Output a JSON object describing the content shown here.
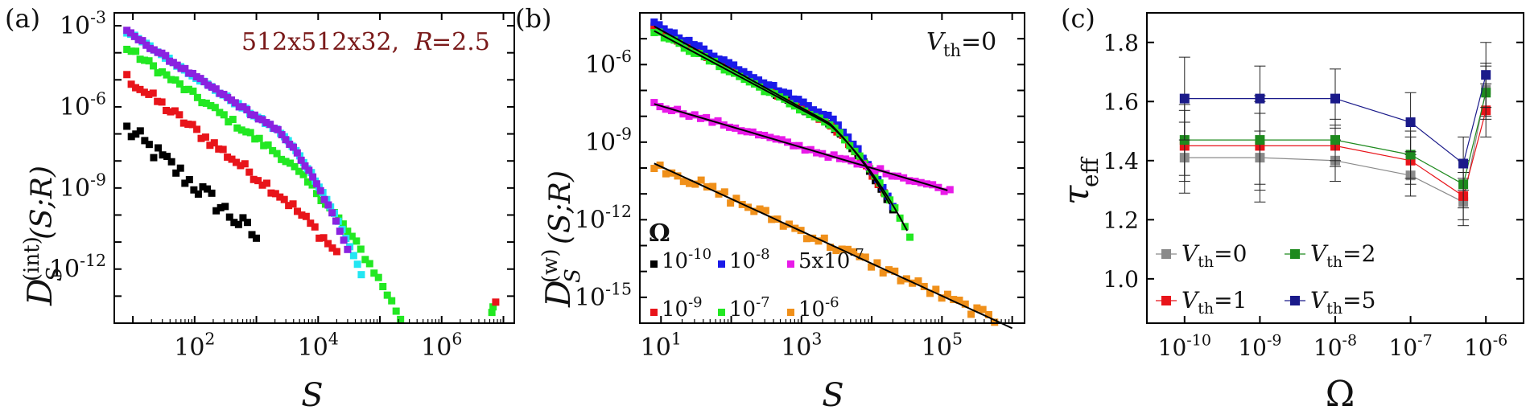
{
  "panels": {
    "a": {
      "letter": "(a)",
      "annotation": {
        "text": "512x512x32,",
        "param_name": "R",
        "param_value": "=2.5",
        "color": "#7a1a1a"
      },
      "xlabel": "S",
      "ylabel": {
        "main": "D",
        "sup": "(int)",
        "sub": "S",
        "args": "(S;R)"
      }
    },
    "b": {
      "letter": "(b)",
      "annotation": {
        "text": "V",
        "sub": "th",
        "value": "=0"
      },
      "legend_title": "Ω",
      "xlabel": "S",
      "ylabel": {
        "main": "D",
        "sup": "(w)",
        "sub": "S",
        "args": "(S;R)"
      }
    },
    "c": {
      "letter": "(c)",
      "xlabel": "Ω",
      "ylabel": {
        "main": "τ",
        "sub": "eff"
      }
    }
  },
  "chart_data": [
    {
      "panel": "a",
      "type": "scatter",
      "xscale": "log",
      "yscale": "log",
      "xlim": [
        5,
        15000000
      ],
      "ylim": [
        1e-14,
        0.003
      ],
      "xticks": [
        {
          "v": 100,
          "base": "10",
          "exp": "2"
        },
        {
          "v": 10000,
          "base": "10",
          "exp": "4"
        },
        {
          "v": 1000000,
          "base": "10",
          "exp": "6"
        }
      ],
      "yticks": [
        {
          "v": 0.001,
          "base": "10",
          "exp": "-3"
        },
        {
          "v": 1e-06,
          "base": "10",
          "exp": "-6"
        },
        {
          "v": 1e-09,
          "base": "10",
          "exp": "-9"
        },
        {
          "v": 1e-12,
          "base": "10",
          "exp": "-12"
        }
      ],
      "series": [
        {
          "color": "#000000",
          "from": 8,
          "to": 1000,
          "y_start": 1.5e-07,
          "slope": -1.9,
          "curv": 0.0,
          "noise": 0.35,
          "ppd": 14
        },
        {
          "color": "#e8141a",
          "from": 8,
          "to": 20000,
          "y_start": 1.2e-05,
          "slope": -1.75,
          "curv": 0.15,
          "noise": 0.18,
          "ppd": 14
        },
        {
          "color": "#22e822",
          "from": 8,
          "to": 300000,
          "y_start": 0.00015,
          "slope": -1.6,
          "curv": 0.22,
          "noise": 0.12,
          "ppd": 14
        },
        {
          "color": "#22e6f2",
          "from": 8,
          "to": 50000,
          "y_start": 0.0006,
          "slope": -1.5,
          "curv": 0.5,
          "noise": 0.06,
          "ppd": 16
        },
        {
          "color": "#8a22e0",
          "from": 8,
          "to": 30000,
          "y_start": 0.0006,
          "slope": -1.5,
          "curv": 0.55,
          "noise": 0.06,
          "ppd": 16
        }
      ],
      "outliers": [
        {
          "color": "#22e822",
          "x": 6500000,
          "y": 2.5e-14
        },
        {
          "color": "#22e822",
          "x": 6800000,
          "y": 4e-14
        },
        {
          "color": "#e8141a",
          "x": 7500000,
          "y": 6e-14
        }
      ]
    },
    {
      "panel": "b",
      "type": "scatter",
      "xscale": "log",
      "yscale": "log",
      "xlim": [
        5,
        1500000
      ],
      "ylim": [
        1e-16,
        0.0001
      ],
      "xticks": [
        {
          "v": 10,
          "base": "10",
          "exp": "1"
        },
        {
          "v": 1000,
          "base": "10",
          "exp": "3"
        },
        {
          "v": 100000,
          "base": "10",
          "exp": "5"
        }
      ],
      "yticks": [
        {
          "v": 1e-06,
          "base": "10",
          "exp": "-6"
        },
        {
          "v": 1e-09,
          "base": "10",
          "exp": "-9"
        },
        {
          "v": 1e-12,
          "base": "10",
          "exp": "-12"
        },
        {
          "v": 1e-15,
          "base": "10",
          "exp": "-15"
        }
      ],
      "legend": [
        {
          "color": "#000000",
          "base": "10",
          "exp": "-10",
          "suffix": ""
        },
        {
          "color": "#1a1ae8",
          "base": "10",
          "exp": "-8",
          "suffix": ""
        },
        {
          "color": "#e81ae8",
          "prefix": "5x",
          "base": "10",
          "exp": "-7",
          "suffix": ""
        },
        {
          "color": "#e8141a",
          "base": "10",
          "exp": "-9",
          "suffix": ""
        },
        {
          "color": "#22e822",
          "base": "10",
          "exp": "-7",
          "suffix": ""
        },
        {
          "color": "#f0901a",
          "base": "10",
          "exp": "-6",
          "suffix": ""
        }
      ],
      "series": [
        {
          "color": "#000000",
          "from": 8,
          "to": 20000,
          "y_start": 3e-05,
          "slope": -1.5,
          "curv": 0.55,
          "noise": 0.07,
          "ppd": 12
        },
        {
          "color": "#e8141a",
          "from": 8,
          "to": 15000,
          "y_start": 3e-05,
          "slope": -1.5,
          "curv": 0.55,
          "noise": 0.07,
          "ppd": 12
        },
        {
          "color": "#1a1ae8",
          "from": 8,
          "to": 20000,
          "y_start": 4e-05,
          "slope": -1.45,
          "curv": 0.58,
          "noise": 0.07,
          "ppd": 14
        },
        {
          "color": "#22e822",
          "from": 8,
          "to": 35000,
          "y_start": 2e-05,
          "slope": -1.45,
          "curv": 0.5,
          "noise": 0.07,
          "ppd": 14
        },
        {
          "color": "#e81ae8",
          "from": 8,
          "to": 130000,
          "y_start": 3e-08,
          "slope": -0.8,
          "curv": 0.0,
          "noise": 0.08,
          "ppd": 12
        },
        {
          "color": "#f0901a",
          "from": 8,
          "to": 1000000,
          "y_start": 1.5e-10,
          "slope": -1.25,
          "curv": 0.0,
          "noise": 0.2,
          "ppd": 12
        }
      ],
      "fits": [
        {
          "from": 8,
          "to": 18000,
          "y_start": 3e-05,
          "slope": -1.5,
          "curv": 0.55
        },
        {
          "from": 8,
          "to": 32000,
          "y_start": 2e-05,
          "slope": -1.45,
          "curv": 0.5
        },
        {
          "from": 8,
          "to": 120000,
          "y_start": 3e-08,
          "slope": -0.8,
          "curv": 0.0
        },
        {
          "from": 8,
          "to": 1000000,
          "y_start": 1.5e-10,
          "slope": -1.25,
          "curv": 0.0
        }
      ]
    },
    {
      "panel": "c",
      "type": "line",
      "categories": [
        {
          "base": "10",
          "exp": "-10"
        },
        {
          "base": "10",
          "exp": "-9"
        },
        {
          "base": "10",
          "exp": "-8"
        },
        {
          "base": "10",
          "exp": "-7"
        },
        {
          "base": "10",
          "exp": "-6"
        }
      ],
      "x": [
        -10,
        -9,
        -8,
        -7,
        -6.3,
        -6
      ],
      "xlim": [
        -10.5,
        -5.5
      ],
      "ylim": [
        0.85,
        1.9
      ],
      "yticks": [
        1.0,
        1.2,
        1.4,
        1.6,
        1.8
      ],
      "yticklabels": [
        "1.0",
        "1.2",
        "1.4",
        "1.6",
        "1.8"
      ],
      "series": [
        {
          "label": "V",
          "sub": "th",
          "value": "=0",
          "color": "#8a8a8a",
          "values": [
            1.41,
            1.41,
            1.4,
            1.35,
            1.26,
            1.64
          ],
          "err": [
            0.12,
            0.15,
            0.07,
            0.07,
            0.08,
            0.09
          ]
        },
        {
          "label": "V",
          "sub": "th",
          "value": "=1",
          "color": "#e8141a",
          "values": [
            1.45,
            1.45,
            1.45,
            1.4,
            1.28,
            1.57
          ],
          "err": [
            0.12,
            0.15,
            0.07,
            0.08,
            0.08,
            0.09
          ]
        },
        {
          "label": "V",
          "sub": "th",
          "value": "=2",
          "color": "#1e8a1e",
          "values": [
            1.47,
            1.47,
            1.47,
            1.42,
            1.32,
            1.63
          ],
          "err": [
            0.12,
            0.15,
            0.07,
            0.08,
            0.08,
            0.09
          ]
        },
        {
          "label": "V",
          "sub": "th",
          "value": "=5",
          "color": "#1a1a8a",
          "values": [
            1.61,
            1.61,
            1.61,
            1.53,
            1.39,
            1.69
          ],
          "err": [
            0.14,
            0.11,
            0.1,
            0.1,
            0.09,
            0.11
          ]
        }
      ]
    }
  ]
}
